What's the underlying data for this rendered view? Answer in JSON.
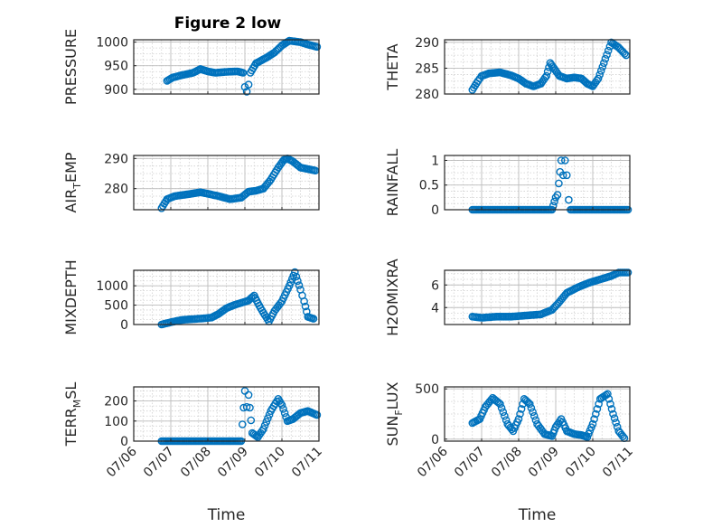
{
  "title": "Figure 2 low",
  "colors": {
    "marker": "#0072BD",
    "axis": "#262626",
    "grid": "#d0d0d0"
  },
  "xaxis": {
    "label": "Time",
    "ticks": [
      "07/06",
      "07/07",
      "07/08",
      "07/09",
      "07/10",
      "07/11"
    ],
    "range_days": [
      0,
      5
    ]
  },
  "chart_data": [
    {
      "type": "scatter",
      "ylabel": "PRESSURE",
      "ylim": [
        890,
        1005
      ],
      "yticks": [
        "900",
        "950",
        "1000"
      ],
      "ytick_values": [
        900,
        950,
        1000
      ],
      "grid": true,
      "keypoints": [
        [
          0.9,
          918
        ],
        [
          1.05,
          925
        ],
        [
          1.3,
          930
        ],
        [
          1.6,
          935
        ],
        [
          1.8,
          943
        ],
        [
          2.0,
          938
        ],
        [
          2.2,
          935
        ],
        [
          2.5,
          937
        ],
        [
          2.8,
          938
        ],
        [
          2.95,
          935
        ],
        [
          3.0,
          905
        ],
        [
          3.05,
          895
        ],
        [
          3.1,
          910
        ],
        [
          3.15,
          935
        ],
        [
          3.3,
          955
        ],
        [
          3.6,
          968
        ],
        [
          3.8,
          978
        ],
        [
          4.0,
          993
        ],
        [
          4.2,
          1003
        ],
        [
          4.5,
          1000
        ],
        [
          4.7,
          995
        ],
        [
          4.95,
          990
        ]
      ]
    },
    {
      "type": "scatter",
      "ylabel": "THETA",
      "ylim": [
        280,
        290.5
      ],
      "yticks": [
        "280",
        "285",
        "290"
      ],
      "ytick_values": [
        280,
        285,
        290
      ],
      "grid": true,
      "keypoints": [
        [
          0.75,
          280.8
        ],
        [
          0.9,
          282.5
        ],
        [
          1.0,
          283.5
        ],
        [
          1.2,
          284
        ],
        [
          1.5,
          284.2
        ],
        [
          1.8,
          283.6
        ],
        [
          2.0,
          283
        ],
        [
          2.2,
          282
        ],
        [
          2.4,
          281.5
        ],
        [
          2.6,
          282
        ],
        [
          2.75,
          283.5
        ],
        [
          2.85,
          286
        ],
        [
          2.95,
          285
        ],
        [
          3.1,
          283.5
        ],
        [
          3.3,
          283
        ],
        [
          3.5,
          283.2
        ],
        [
          3.7,
          283
        ],
        [
          3.85,
          282
        ],
        [
          4.0,
          281.5
        ],
        [
          4.15,
          283
        ],
        [
          4.3,
          286
        ],
        [
          4.5,
          290
        ],
        [
          4.7,
          289
        ],
        [
          4.9,
          287.5
        ]
      ]
    },
    {
      "type": "scatter",
      "ylabel": "AIR_TEMP",
      "ylabel_main": "AIR",
      "ylabel_sub": "T",
      "ylabel_rest": "EMP",
      "ylim": [
        273,
        291
      ],
      "yticks": [
        "280",
        "290"
      ],
      "ytick_values": [
        280,
        290
      ],
      "grid": true,
      "keypoints": [
        [
          0.75,
          273.5
        ],
        [
          0.9,
          276.5
        ],
        [
          1.1,
          277.5
        ],
        [
          1.5,
          278.2
        ],
        [
          1.8,
          278.8
        ],
        [
          2.0,
          278.3
        ],
        [
          2.3,
          277.5
        ],
        [
          2.6,
          276.5
        ],
        [
          2.9,
          277
        ],
        [
          3.1,
          279
        ],
        [
          3.3,
          279.3
        ],
        [
          3.5,
          280
        ],
        [
          3.7,
          283
        ],
        [
          3.9,
          287
        ],
        [
          4.05,
          289.5
        ],
        [
          4.15,
          290
        ],
        [
          4.3,
          289
        ],
        [
          4.5,
          287
        ],
        [
          4.7,
          286.5
        ],
        [
          4.9,
          286
        ]
      ]
    },
    {
      "type": "scatter",
      "ylabel": "RAINFALL",
      "ylim": [
        0,
        1.1
      ],
      "yticks": [
        "0",
        "0.5",
        "1"
      ],
      "ytick_values": [
        0,
        0.5,
        1
      ],
      "grid": true,
      "keypoints": [
        [
          0.75,
          0
        ],
        [
          2.9,
          0
        ],
        [
          3.0,
          0.25
        ],
        [
          3.05,
          0.3
        ],
        [
          3.15,
          1
        ],
        [
          3.2,
          0.7
        ],
        [
          3.25,
          1
        ],
        [
          3.3,
          0.7
        ],
        [
          3.35,
          0.2
        ],
        [
          3.4,
          0
        ],
        [
          4.95,
          0
        ]
      ]
    },
    {
      "type": "scatter",
      "ylabel": "MIXDEPTH",
      "ylim": [
        0,
        1400
      ],
      "yticks": [
        "0",
        "500",
        "1000"
      ],
      "ytick_values": [
        0,
        500,
        1000
      ],
      "grid": true,
      "keypoints": [
        [
          0.75,
          0
        ],
        [
          1.0,
          60
        ],
        [
          1.3,
          120
        ],
        [
          1.6,
          140
        ],
        [
          1.9,
          160
        ],
        [
          2.1,
          180
        ],
        [
          2.3,
          280
        ],
        [
          2.5,
          420
        ],
        [
          2.7,
          500
        ],
        [
          2.9,
          560
        ],
        [
          3.1,
          620
        ],
        [
          3.25,
          750
        ],
        [
          3.35,
          550
        ],
        [
          3.5,
          300
        ],
        [
          3.65,
          80
        ],
        [
          3.8,
          350
        ],
        [
          4.0,
          600
        ],
        [
          4.2,
          1000
        ],
        [
          4.35,
          1350
        ],
        [
          4.5,
          900
        ],
        [
          4.6,
          600
        ],
        [
          4.7,
          200
        ],
        [
          4.85,
          150
        ]
      ]
    },
    {
      "type": "scatter",
      "ylabel": "H2OMIXRA",
      "ylim": [
        2.5,
        7.3
      ],
      "yticks": [
        "4",
        "6"
      ],
      "ytick_values": [
        4,
        6
      ],
      "grid": true,
      "keypoints": [
        [
          0.75,
          3.2
        ],
        [
          1.0,
          3.1
        ],
        [
          1.4,
          3.2
        ],
        [
          1.8,
          3.2
        ],
        [
          2.2,
          3.3
        ],
        [
          2.6,
          3.4
        ],
        [
          2.9,
          3.8
        ],
        [
          3.1,
          4.5
        ],
        [
          3.3,
          5.3
        ],
        [
          3.6,
          5.8
        ],
        [
          3.9,
          6.2
        ],
        [
          4.2,
          6.5
        ],
        [
          4.5,
          6.8
        ],
        [
          4.7,
          7.1
        ],
        [
          4.95,
          7.1
        ]
      ]
    },
    {
      "type": "scatter",
      "ylabel": "TERR_MSL",
      "ylabel_main": "TERR",
      "ylabel_sub": "M",
      "ylabel_rest": "SL",
      "ylim": [
        0,
        270
      ],
      "yticks": [
        "0",
        "100",
        "200"
      ],
      "ytick_values": [
        0,
        100,
        200
      ],
      "grid": true,
      "keypoints": [
        [
          0.75,
          0
        ],
        [
          2.9,
          0
        ],
        [
          3.0,
          250
        ],
        [
          3.05,
          170
        ],
        [
          3.1,
          230
        ],
        [
          3.2,
          40
        ],
        [
          3.35,
          20
        ],
        [
          3.5,
          60
        ],
        [
          3.7,
          150
        ],
        [
          3.9,
          210
        ],
        [
          4.0,
          180
        ],
        [
          4.15,
          100
        ],
        [
          4.3,
          110
        ],
        [
          4.5,
          140
        ],
        [
          4.7,
          150
        ],
        [
          4.95,
          130
        ]
      ]
    },
    {
      "type": "scatter",
      "ylabel": "SUN_FLUX",
      "ylabel_main": "SUN",
      "ylabel_sub": "F",
      "ylabel_rest": "LUX",
      "ylim": [
        -20,
        520
      ],
      "yticks": [
        "0",
        "500"
      ],
      "ytick_values": [
        0,
        500
      ],
      "grid": true,
      "keypoints": [
        [
          0.75,
          160
        ],
        [
          0.95,
          200
        ],
        [
          1.1,
          320
        ],
        [
          1.3,
          410
        ],
        [
          1.5,
          350
        ],
        [
          1.7,
          150
        ],
        [
          1.85,
          80
        ],
        [
          2.0,
          200
        ],
        [
          2.15,
          400
        ],
        [
          2.3,
          350
        ],
        [
          2.5,
          150
        ],
        [
          2.7,
          50
        ],
        [
          2.9,
          30
        ],
        [
          3.0,
          120
        ],
        [
          3.15,
          200
        ],
        [
          3.3,
          80
        ],
        [
          3.5,
          50
        ],
        [
          3.7,
          40
        ],
        [
          3.85,
          20
        ],
        [
          4.0,
          150
        ],
        [
          4.2,
          400
        ],
        [
          4.4,
          450
        ],
        [
          4.55,
          250
        ],
        [
          4.7,
          80
        ],
        [
          4.85,
          10
        ]
      ]
    }
  ]
}
